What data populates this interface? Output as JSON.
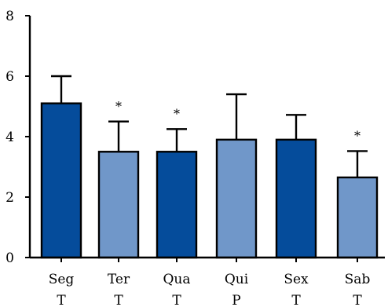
{
  "chart_data": {
    "type": "bar",
    "categories": [
      "Seg",
      "Ter",
      "Qua",
      "Qui",
      "Sex",
      "Sab"
    ],
    "sublabels": [
      "T",
      "T",
      "T",
      "P",
      "T",
      "T"
    ],
    "values": [
      5.1,
      3.5,
      3.5,
      3.9,
      3.9,
      2.65
    ],
    "errors": [
      0.9,
      1.0,
      0.75,
      1.5,
      0.82,
      0.87
    ],
    "significance": [
      "",
      "*",
      "*",
      "",
      "",
      "*"
    ],
    "bar_colors": [
      "#054c9b",
      "#7097c9",
      "#054c9b",
      "#7097c9",
      "#054c9b",
      "#7097c9"
    ],
    "ylim": [
      0,
      8
    ],
    "yticks": [
      0,
      2,
      4,
      6,
      8
    ],
    "title": "",
    "xlabel": "",
    "ylabel": "",
    "grid": false,
    "legend": "none"
  }
}
